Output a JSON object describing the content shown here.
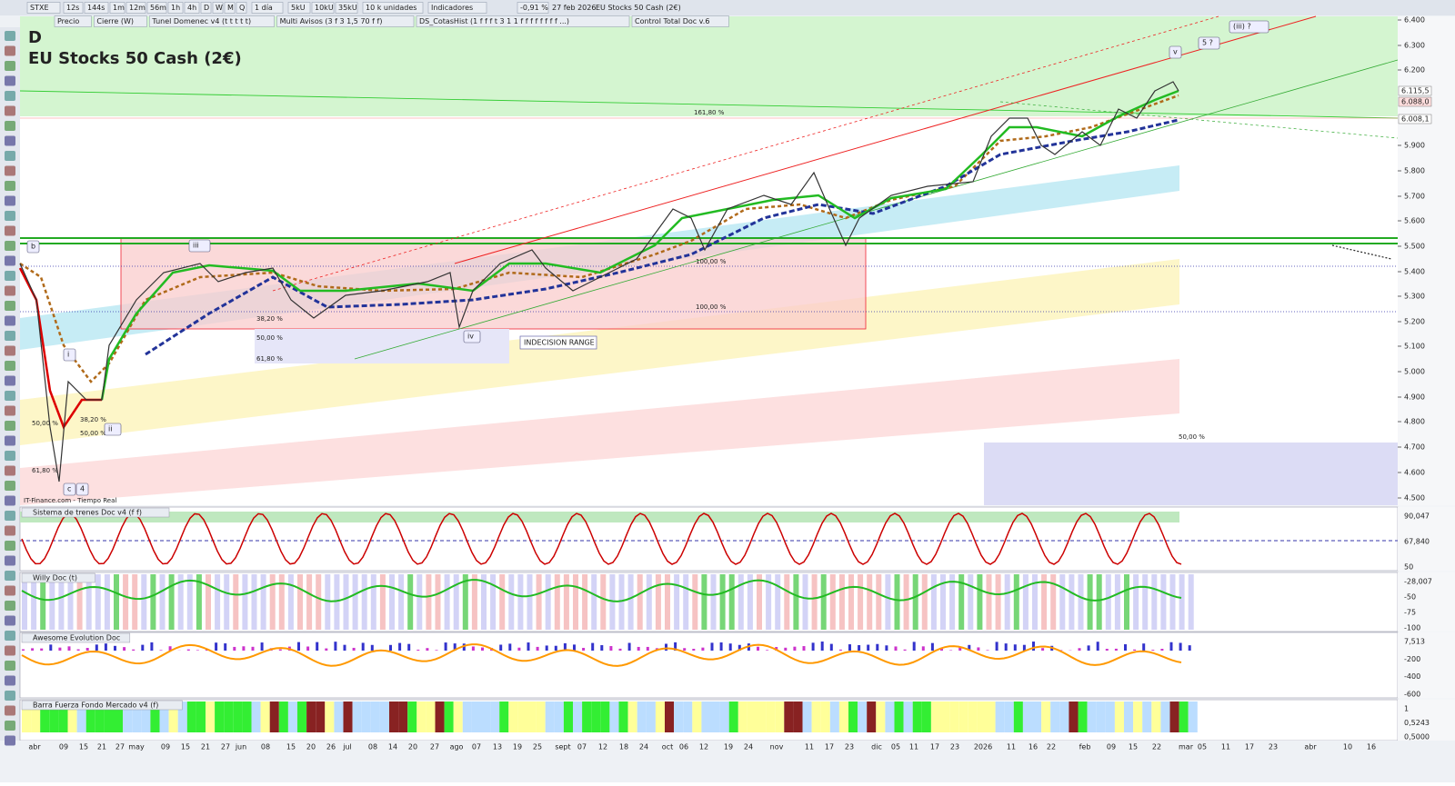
{
  "toolbar": {
    "symbol": "STXE",
    "periods": [
      "12s",
      "144s",
      "1m",
      "12m",
      "56m",
      "1h",
      "4h",
      "D",
      "W",
      "M",
      "Q"
    ],
    "range": "1 día",
    "units": [
      "5kU",
      "10kU",
      "35kU"
    ],
    "unit_select": "10 k unidades",
    "indicators": "Indicadores",
    "change": "-0,91 %",
    "date": "27 feb 2026",
    "instrument": "EU Stocks 50 Cash (2€)"
  },
  "indicator_bar": [
    "Precio",
    "Cierre (W)",
    "Tunel Domenec v4 (t t t t t)",
    "Multi Avisos (3 f 3 1,5 70 f f)",
    "DS_CotasHist (1 f f f t 3 1 1 f f f f f f f f ...)",
    "Control Total Doc v.6"
  ],
  "chart": {
    "timeframe": "D",
    "title": "EU Stocks 50 Cash (2€)",
    "source": "IT-Finance.com - Tiempo Real",
    "price_axis": [
      "6.400",
      "6.300",
      "6.200",
      "5.900",
      "5.800",
      "5.700",
      "5.600",
      "5.500",
      "5.400",
      "5.300",
      "5.200",
      "5.100",
      "5.000",
      "4.900",
      "4.800",
      "4.700",
      "4.600",
      "4.500"
    ],
    "price_tags": [
      "6.115,5",
      "6.088,0",
      "6.008,1"
    ],
    "annotations": {
      "fib_1618": "161,80 %",
      "fib_100a": "100,00 %",
      "fib_100b": "100,00 %",
      "fib_382a": "38,20 %",
      "fib_500a": "50,00 %",
      "fib_618a": "61,80 %",
      "fib_382b": "38,20 %",
      "fib_500b": "50,00 %",
      "fib_500c": "50,00 %",
      "fib_618b": "61,80 %",
      "fib_500d": "50,00 %",
      "range": "INDECISION RANGE"
    },
    "waves": {
      "iii_q": "(iii) ?",
      "five_q": "5 ?",
      "v": "v",
      "iv": "iv",
      "iii": "iii",
      "b": "b",
      "c": "c",
      "four": "4",
      "i": "i",
      "ii": "ii"
    }
  },
  "panels": [
    {
      "name": "Sistema de trenes Doc v4 (f f)",
      "axis": [
        "90,047",
        "67,840",
        "50"
      ]
    },
    {
      "name": "Willy Doc (t)",
      "axis": [
        "-28,007",
        "-50",
        "-75",
        "-100"
      ]
    },
    {
      "name": "Awesome Evolution Doc",
      "axis": [
        "7,513",
        "-200",
        "-400",
        "-600"
      ]
    },
    {
      "name": "Barra Fuerza Fondo Mercado v4 (f)",
      "axis": [
        "1",
        "0,5243",
        "0,5000"
      ]
    }
  ],
  "time_axis": [
    "abr",
    "09",
    "15",
    "21",
    "27",
    "may",
    "09",
    "15",
    "21",
    "27",
    "jun",
    "08",
    "15",
    "20",
    "26",
    "jul",
    "08",
    "14",
    "20",
    "27",
    "ago",
    "07",
    "13",
    "19",
    "25",
    "sept",
    "07",
    "12",
    "18",
    "24",
    "oct",
    "06",
    "12",
    "19",
    "24",
    "nov",
    "11",
    "17",
    "23",
    "dic",
    "05",
    "11",
    "17",
    "23",
    "2026",
    "11",
    "16",
    "22",
    "feb",
    "09",
    "15",
    "22",
    "mar",
    "05",
    "11",
    "17",
    "23",
    "abr",
    "10",
    "16"
  ]
}
